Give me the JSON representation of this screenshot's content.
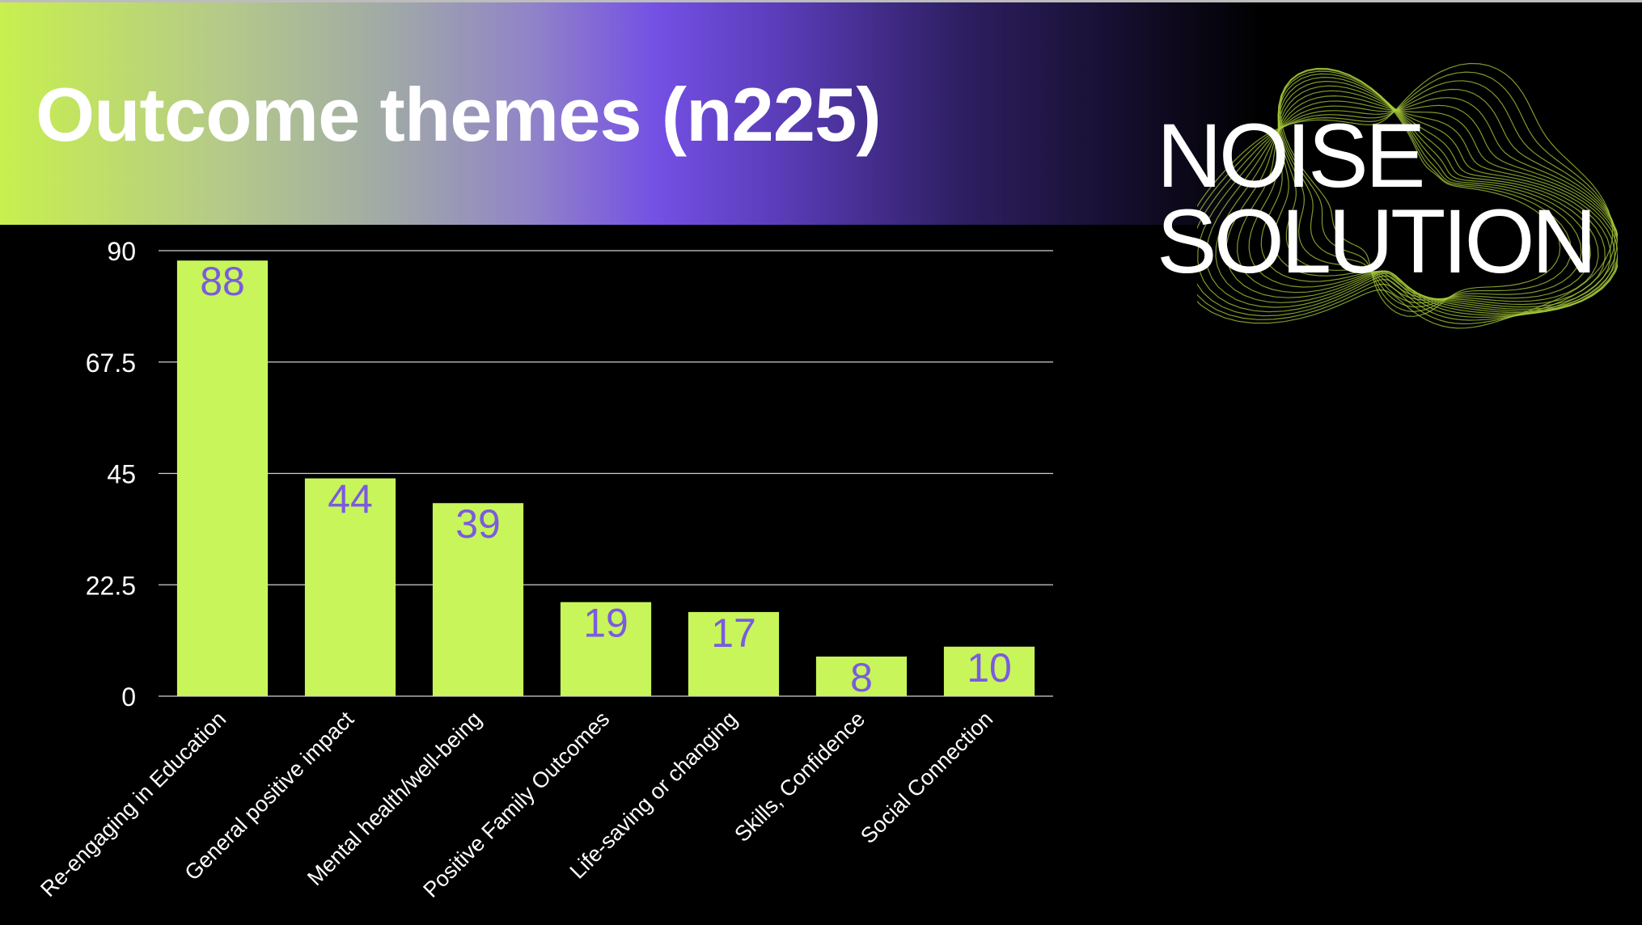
{
  "header": {
    "title": "Outcome themes (n225)"
  },
  "brand": {
    "line1": "NOISE",
    "line2": "SOLUTION"
  },
  "colors": {
    "background": "#000000",
    "bar": "#c8f55a",
    "data_label": "#7a5be0",
    "gridline": "#cfcfcf",
    "text": "#ffffff",
    "swirl": "#a8cc3a"
  },
  "chart_data": {
    "type": "bar",
    "categories": [
      "Re-engaging in Education",
      "General positive impact",
      "Mental health/well-being",
      "Positive Family Outcomes",
      "Life-saving or changing",
      "Skills, Confidence",
      "Social Connection"
    ],
    "values": [
      88,
      44,
      39,
      19,
      17,
      8,
      10
    ],
    "ylim": [
      0,
      90
    ],
    "yticks": [
      "0",
      "22.5",
      "45",
      "67.5",
      "90"
    ],
    "ytick_values": [
      0,
      22.5,
      45,
      67.5,
      90
    ],
    "grid": true,
    "data_labels": true
  }
}
